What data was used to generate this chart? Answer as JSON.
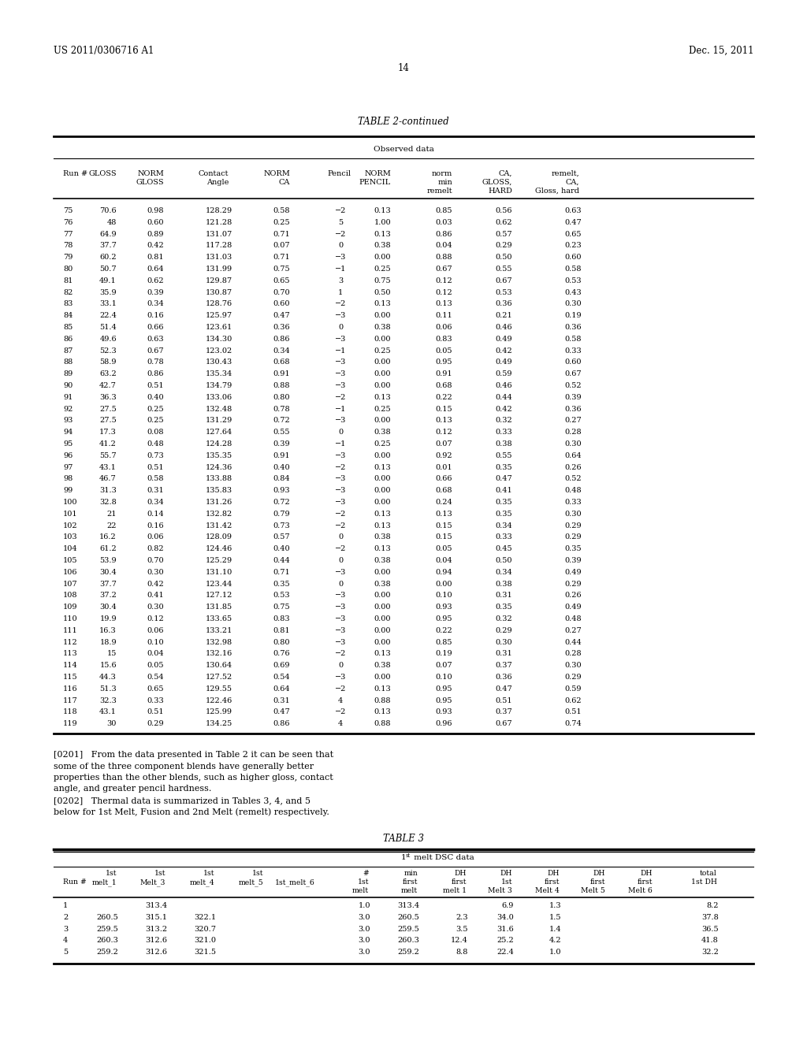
{
  "header_left": "US 2011/0306716 A1",
  "header_right": "Dec. 15, 2011",
  "page_number": "14",
  "table2_title": "TABLE 2-continued",
  "table2_subtitle": "Observed data",
  "table2_data": [
    [
      "75",
      "70.6",
      "0.98",
      "128.29",
      "0.58",
      "−2",
      "0.13",
      "0.85",
      "0.56",
      "0.63"
    ],
    [
      "76",
      "48",
      "0.60",
      "121.28",
      "0.25",
      "5",
      "1.00",
      "0.03",
      "0.62",
      "0.47"
    ],
    [
      "77",
      "64.9",
      "0.89",
      "131.07",
      "0.71",
      "−2",
      "0.13",
      "0.86",
      "0.57",
      "0.65"
    ],
    [
      "78",
      "37.7",
      "0.42",
      "117.28",
      "0.07",
      "0",
      "0.38",
      "0.04",
      "0.29",
      "0.23"
    ],
    [
      "79",
      "60.2",
      "0.81",
      "131.03",
      "0.71",
      "−3",
      "0.00",
      "0.88",
      "0.50",
      "0.60"
    ],
    [
      "80",
      "50.7",
      "0.64",
      "131.99",
      "0.75",
      "−1",
      "0.25",
      "0.67",
      "0.55",
      "0.58"
    ],
    [
      "81",
      "49.1",
      "0.62",
      "129.87",
      "0.65",
      "3",
      "0.75",
      "0.12",
      "0.67",
      "0.53"
    ],
    [
      "82",
      "35.9",
      "0.39",
      "130.87",
      "0.70",
      "1",
      "0.50",
      "0.12",
      "0.53",
      "0.43"
    ],
    [
      "83",
      "33.1",
      "0.34",
      "128.76",
      "0.60",
      "−2",
      "0.13",
      "0.13",
      "0.36",
      "0.30"
    ],
    [
      "84",
      "22.4",
      "0.16",
      "125.97",
      "0.47",
      "−3",
      "0.00",
      "0.11",
      "0.21",
      "0.19"
    ],
    [
      "85",
      "51.4",
      "0.66",
      "123.61",
      "0.36",
      "0",
      "0.38",
      "0.06",
      "0.46",
      "0.36"
    ],
    [
      "86",
      "49.6",
      "0.63",
      "134.30",
      "0.86",
      "−3",
      "0.00",
      "0.83",
      "0.49",
      "0.58"
    ],
    [
      "87",
      "52.3",
      "0.67",
      "123.02",
      "0.34",
      "−1",
      "0.25",
      "0.05",
      "0.42",
      "0.33"
    ],
    [
      "88",
      "58.9",
      "0.78",
      "130.43",
      "0.68",
      "−3",
      "0.00",
      "0.95",
      "0.49",
      "0.60"
    ],
    [
      "89",
      "63.2",
      "0.86",
      "135.34",
      "0.91",
      "−3",
      "0.00",
      "0.91",
      "0.59",
      "0.67"
    ],
    [
      "90",
      "42.7",
      "0.51",
      "134.79",
      "0.88",
      "−3",
      "0.00",
      "0.68",
      "0.46",
      "0.52"
    ],
    [
      "91",
      "36.3",
      "0.40",
      "133.06",
      "0.80",
      "−2",
      "0.13",
      "0.22",
      "0.44",
      "0.39"
    ],
    [
      "92",
      "27.5",
      "0.25",
      "132.48",
      "0.78",
      "−1",
      "0.25",
      "0.15",
      "0.42",
      "0.36"
    ],
    [
      "93",
      "27.5",
      "0.25",
      "131.29",
      "0.72",
      "−3",
      "0.00",
      "0.13",
      "0.32",
      "0.27"
    ],
    [
      "94",
      "17.3",
      "0.08",
      "127.64",
      "0.55",
      "0",
      "0.38",
      "0.12",
      "0.33",
      "0.28"
    ],
    [
      "95",
      "41.2",
      "0.48",
      "124.28",
      "0.39",
      "−1",
      "0.25",
      "0.07",
      "0.38",
      "0.30"
    ],
    [
      "96",
      "55.7",
      "0.73",
      "135.35",
      "0.91",
      "−3",
      "0.00",
      "0.92",
      "0.55",
      "0.64"
    ],
    [
      "97",
      "43.1",
      "0.51",
      "124.36",
      "0.40",
      "−2",
      "0.13",
      "0.01",
      "0.35",
      "0.26"
    ],
    [
      "98",
      "46.7",
      "0.58",
      "133.88",
      "0.84",
      "−3",
      "0.00",
      "0.66",
      "0.47",
      "0.52"
    ],
    [
      "99",
      "31.3",
      "0.31",
      "135.83",
      "0.93",
      "−3",
      "0.00",
      "0.68",
      "0.41",
      "0.48"
    ],
    [
      "100",
      "32.8",
      "0.34",
      "131.26",
      "0.72",
      "−3",
      "0.00",
      "0.24",
      "0.35",
      "0.33"
    ],
    [
      "101",
      "21",
      "0.14",
      "132.82",
      "0.79",
      "−2",
      "0.13",
      "0.13",
      "0.35",
      "0.30"
    ],
    [
      "102",
      "22",
      "0.16",
      "131.42",
      "0.73",
      "−2",
      "0.13",
      "0.15",
      "0.34",
      "0.29"
    ],
    [
      "103",
      "16.2",
      "0.06",
      "128.09",
      "0.57",
      "0",
      "0.38",
      "0.15",
      "0.33",
      "0.29"
    ],
    [
      "104",
      "61.2",
      "0.82",
      "124.46",
      "0.40",
      "−2",
      "0.13",
      "0.05",
      "0.45",
      "0.35"
    ],
    [
      "105",
      "53.9",
      "0.70",
      "125.29",
      "0.44",
      "0",
      "0.38",
      "0.04",
      "0.50",
      "0.39"
    ],
    [
      "106",
      "30.4",
      "0.30",
      "131.10",
      "0.71",
      "−3",
      "0.00",
      "0.94",
      "0.34",
      "0.49"
    ],
    [
      "107",
      "37.7",
      "0.42",
      "123.44",
      "0.35",
      "0",
      "0.38",
      "0.00",
      "0.38",
      "0.29"
    ],
    [
      "108",
      "37.2",
      "0.41",
      "127.12",
      "0.53",
      "−3",
      "0.00",
      "0.10",
      "0.31",
      "0.26"
    ],
    [
      "109",
      "30.4",
      "0.30",
      "131.85",
      "0.75",
      "−3",
      "0.00",
      "0.93",
      "0.35",
      "0.49"
    ],
    [
      "110",
      "19.9",
      "0.12",
      "133.65",
      "0.83",
      "−3",
      "0.00",
      "0.95",
      "0.32",
      "0.48"
    ],
    [
      "111",
      "16.3",
      "0.06",
      "133.21",
      "0.81",
      "−3",
      "0.00",
      "0.22",
      "0.29",
      "0.27"
    ],
    [
      "112",
      "18.9",
      "0.10",
      "132.98",
      "0.80",
      "−3",
      "0.00",
      "0.85",
      "0.30",
      "0.44"
    ],
    [
      "113",
      "15",
      "0.04",
      "132.16",
      "0.76",
      "−2",
      "0.13",
      "0.19",
      "0.31",
      "0.28"
    ],
    [
      "114",
      "15.6",
      "0.05",
      "130.64",
      "0.69",
      "0",
      "0.38",
      "0.07",
      "0.37",
      "0.30"
    ],
    [
      "115",
      "44.3",
      "0.54",
      "127.52",
      "0.54",
      "−3",
      "0.00",
      "0.10",
      "0.36",
      "0.29"
    ],
    [
      "116",
      "51.3",
      "0.65",
      "129.55",
      "0.64",
      "−2",
      "0.13",
      "0.95",
      "0.47",
      "0.59"
    ],
    [
      "117",
      "32.3",
      "0.33",
      "122.46",
      "0.31",
      "4",
      "0.88",
      "0.95",
      "0.51",
      "0.62"
    ],
    [
      "118",
      "43.1",
      "0.51",
      "125.99",
      "0.47",
      "−2",
      "0.13",
      "0.93",
      "0.37",
      "0.51"
    ],
    [
      "119",
      "30",
      "0.29",
      "134.25",
      "0.86",
      "4",
      "0.88",
      "0.96",
      "0.67",
      "0.74"
    ]
  ],
  "para_0201_lines": [
    "[0201]   From the data presented in Table 2 it can be seen that",
    "some of the three component blends have generally better",
    "properties than the other blends, such as higher gloss, contact",
    "angle, and greater pencil hardness."
  ],
  "para_0202_lines": [
    "[0202]   Thermal data is summarized in Tables 3, 4, and 5",
    "below for 1st Melt, Fusion and 2nd Melt (remelt) respectively."
  ],
  "table3_title": "TABLE 3",
  "table3_subtitle": "1st melt DSC data",
  "table3_data": [
    [
      "1",
      "",
      "313.4",
      "",
      "",
      "",
      "1.0",
      "313.4",
      "",
      "6.9",
      "1.3",
      "",
      "",
      "8.2"
    ],
    [
      "2",
      "260.5",
      "315.1",
      "322.1",
      "",
      "",
      "3.0",
      "260.5",
      "2.3",
      "34.0",
      "1.5",
      "",
      "",
      "37.8"
    ],
    [
      "3",
      "259.5",
      "313.2",
      "320.7",
      "",
      "",
      "3.0",
      "259.5",
      "3.5",
      "31.6",
      "1.4",
      "",
      "",
      "36.5"
    ],
    [
      "4",
      "260.3",
      "312.6",
      "321.0",
      "",
      "",
      "3.0",
      "260.3",
      "12.4",
      "25.2",
      "4.2",
      "",
      "",
      "41.8"
    ],
    [
      "5",
      "259.2",
      "312.6",
      "321.5",
      "",
      "",
      "3.0",
      "259.2",
      "8.8",
      "22.4",
      "1.0",
      "",
      "",
      "32.2"
    ]
  ]
}
